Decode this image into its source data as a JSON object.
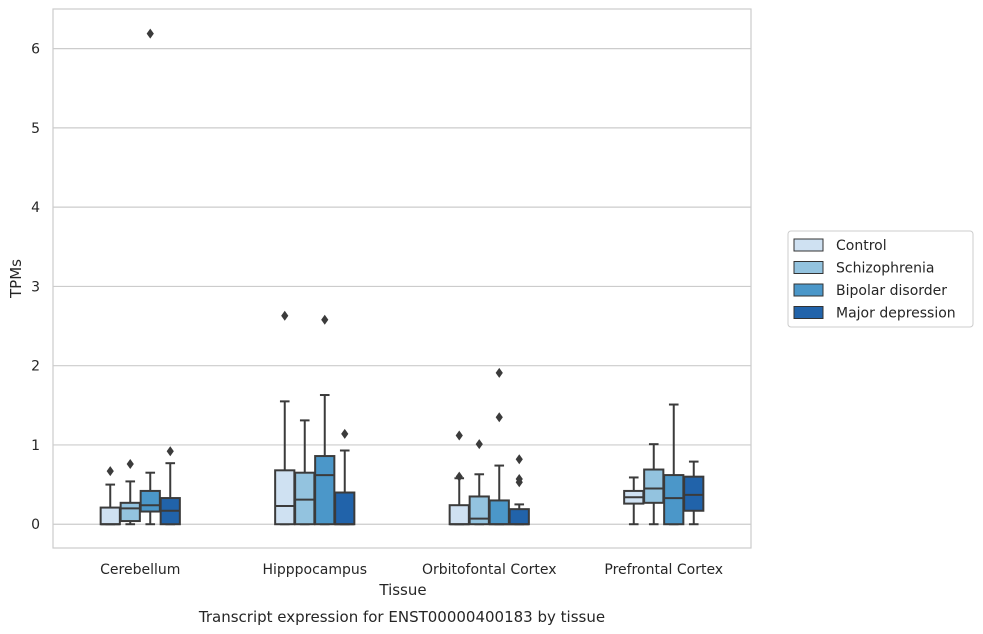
{
  "chart_data": {
    "type": "box",
    "caption": "Transcript expression for ENST00000400183 by tissue",
    "xlabel": "Tissue",
    "ylabel": "TPMs",
    "ylim": [
      -0.3,
      6.5
    ],
    "yticks": [
      0,
      1,
      2,
      3,
      4,
      5,
      6
    ],
    "grid": true,
    "legend_position": "right",
    "categories": [
      "Cerebellum",
      "Hipppocampus",
      "Orbitofontal Cortex",
      "Prefrontal Cortex"
    ],
    "series": [
      {
        "name": "Control",
        "color": "#cfe1f2",
        "boxes": [
          {
            "whisker_low": 0,
            "q1": 0,
            "median": 0,
            "q3": 0.21,
            "whisker_high": 0.5,
            "outliers": [
              0.67
            ]
          },
          {
            "whisker_low": 0,
            "q1": 0,
            "median": 0.23,
            "q3": 0.68,
            "whisker_high": 1.55,
            "outliers": [
              2.63
            ]
          },
          {
            "whisker_low": 0,
            "q1": 0,
            "median": 0,
            "q3": 0.24,
            "whisker_high": 0.58,
            "outliers": [
              0.6,
              1.12
            ]
          },
          {
            "whisker_low": 0,
            "q1": 0.26,
            "median": 0.34,
            "q3": 0.42,
            "whisker_high": 0.59,
            "outliers": []
          }
        ]
      },
      {
        "name": "Schizophrenia",
        "color": "#93c3df",
        "boxes": [
          {
            "whisker_low": 0,
            "q1": 0.04,
            "median": 0.2,
            "q3": 0.27,
            "whisker_high": 0.54,
            "outliers": [
              0.76
            ]
          },
          {
            "whisker_low": 0,
            "q1": 0,
            "median": 0.31,
            "q3": 0.65,
            "whisker_high": 1.31,
            "outliers": []
          },
          {
            "whisker_low": 0,
            "q1": 0,
            "median": 0.07,
            "q3": 0.35,
            "whisker_high": 0.63,
            "outliers": [
              1.01
            ]
          },
          {
            "whisker_low": 0,
            "q1": 0.27,
            "median": 0.45,
            "q3": 0.69,
            "whisker_high": 1.01,
            "outliers": []
          }
        ]
      },
      {
        "name": "Bipolar disorder",
        "color": "#4b97c9",
        "boxes": [
          {
            "whisker_low": 0,
            "q1": 0.16,
            "median": 0.24,
            "q3": 0.42,
            "whisker_high": 0.65,
            "outliers": [
              6.19
            ]
          },
          {
            "whisker_low": 0,
            "q1": 0,
            "median": 0.62,
            "q3": 0.86,
            "whisker_high": 1.63,
            "outliers": [
              2.58
            ]
          },
          {
            "whisker_low": 0,
            "q1": 0,
            "median": 0,
            "q3": 0.3,
            "whisker_high": 0.74,
            "outliers": [
              1.35,
              1.91
            ]
          },
          {
            "whisker_low": 0,
            "q1": 0,
            "median": 0.33,
            "q3": 0.62,
            "whisker_high": 1.51,
            "outliers": []
          }
        ]
      },
      {
        "name": "Major depression",
        "color": "#2163aa",
        "boxes": [
          {
            "whisker_low": 0,
            "q1": 0,
            "median": 0.17,
            "q3": 0.33,
            "whisker_high": 0.77,
            "outliers": [
              0.92
            ]
          },
          {
            "whisker_low": 0,
            "q1": 0,
            "median": 0,
            "q3": 0.4,
            "whisker_high": 0.93,
            "outliers": [
              1.14
            ]
          },
          {
            "whisker_low": 0,
            "q1": 0,
            "median": 0,
            "q3": 0.19,
            "whisker_high": 0.25,
            "outliers": [
              0.53,
              0.57,
              0.82
            ]
          },
          {
            "whisker_low": 0,
            "q1": 0.17,
            "median": 0.37,
            "q3": 0.6,
            "whisker_high": 0.79,
            "outliers": []
          }
        ]
      }
    ]
  }
}
